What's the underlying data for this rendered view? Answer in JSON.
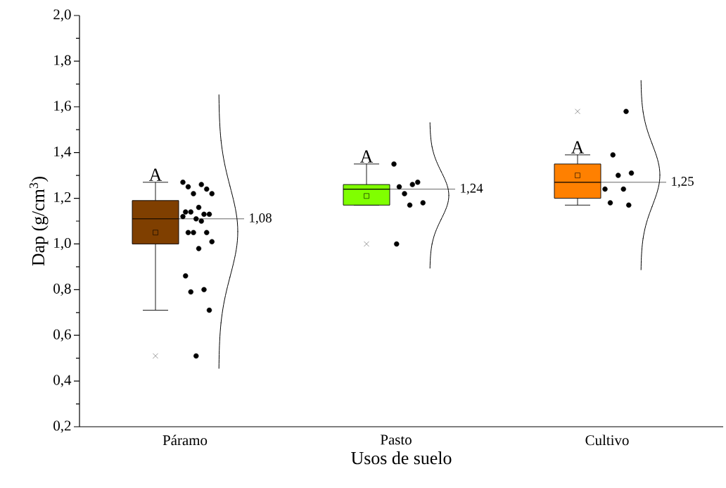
{
  "chart_data": {
    "type": "box",
    "xlabel": "Usos de suelo",
    "ylabel": "Dap (g/cm$^{3}$)",
    "categories": [
      "Páramo",
      "Pasto",
      "Cultivo"
    ],
    "ylim": [
      0.2,
      2.0
    ],
    "yticks": [
      {
        "value": 0.2,
        "label": "0,2"
      },
      {
        "value": 0.4,
        "label": "0,4"
      },
      {
        "value": 0.6,
        "label": "0,6"
      },
      {
        "value": 0.8,
        "label": "0,8"
      },
      {
        "value": 1.0,
        "label": "1,0"
      },
      {
        "value": 1.2,
        "label": "1,2"
      },
      {
        "value": 1.4,
        "label": "1,4"
      },
      {
        "value": 1.6,
        "label": "1,6"
      },
      {
        "value": 1.8,
        "label": "1,8"
      },
      {
        "value": 2.0,
        "label": "2,0"
      }
    ],
    "series": [
      {
        "colors": [
          "#7f3f00",
          "#80ff00",
          "#ff8000"
        ],
        "boxes": [
          {
            "low": 0.71,
            "q1": 1.0,
            "median": 1.11,
            "q3": 1.19,
            "high": 1.27,
            "mean": 1.05,
            "outliers": [
              0.51
            ]
          },
          {
            "low": 1.17,
            "q1": 1.17,
            "median": 1.24,
            "q3": 1.26,
            "high": 1.35,
            "mean": 1.21,
            "outliers": [
              1.0
            ]
          },
          {
            "low": 1.17,
            "q1": 1.2,
            "median": 1.27,
            "q3": 1.35,
            "high": 1.39,
            "mean": 1.3,
            "outliers": [
              1.58
            ]
          }
        ]
      },
      {
        "type": "scatter",
        "color": "#000000",
        "marker": "circle",
        "x": [
          "Páramo",
          "Páramo",
          "Páramo",
          "Páramo",
          "Páramo",
          "Páramo",
          "Páramo",
          "Páramo",
          "Páramo",
          "Páramo",
          "Páramo",
          "Páramo",
          "Páramo",
          "Páramo",
          "Páramo",
          "Páramo",
          "Páramo",
          "Páramo",
          "Páramo",
          "Páramo",
          "Páramo",
          "Páramo",
          "Páramo",
          "Páramo",
          "Pasto",
          "Pasto",
          "Pasto",
          "Pasto",
          "Pasto",
          "Pasto",
          "Pasto",
          "Pasto",
          "Cultivo",
          "Cultivo",
          "Cultivo",
          "Cultivo",
          "Cultivo",
          "Cultivo",
          "Cultivo",
          "Cultivo"
        ],
        "values": [
          1.27,
          1.26,
          1.25,
          1.24,
          1.22,
          1.22,
          1.16,
          1.14,
          1.13,
          1.14,
          1.13,
          1.11,
          1.12,
          1.1,
          1.05,
          1.05,
          1.05,
          1.01,
          0.98,
          0.86,
          0.8,
          0.79,
          0.71,
          0.51,
          1.35,
          1.26,
          1.25,
          1.27,
          1.22,
          1.18,
          1.17,
          1.0,
          1.58,
          1.39,
          1.31,
          1.3,
          1.24,
          1.24,
          1.18,
          1.17
        ]
      }
    ],
    "annotations": [
      "A",
      "A",
      "A",
      "1,08",
      "1,24",
      "1,25"
    ]
  }
}
